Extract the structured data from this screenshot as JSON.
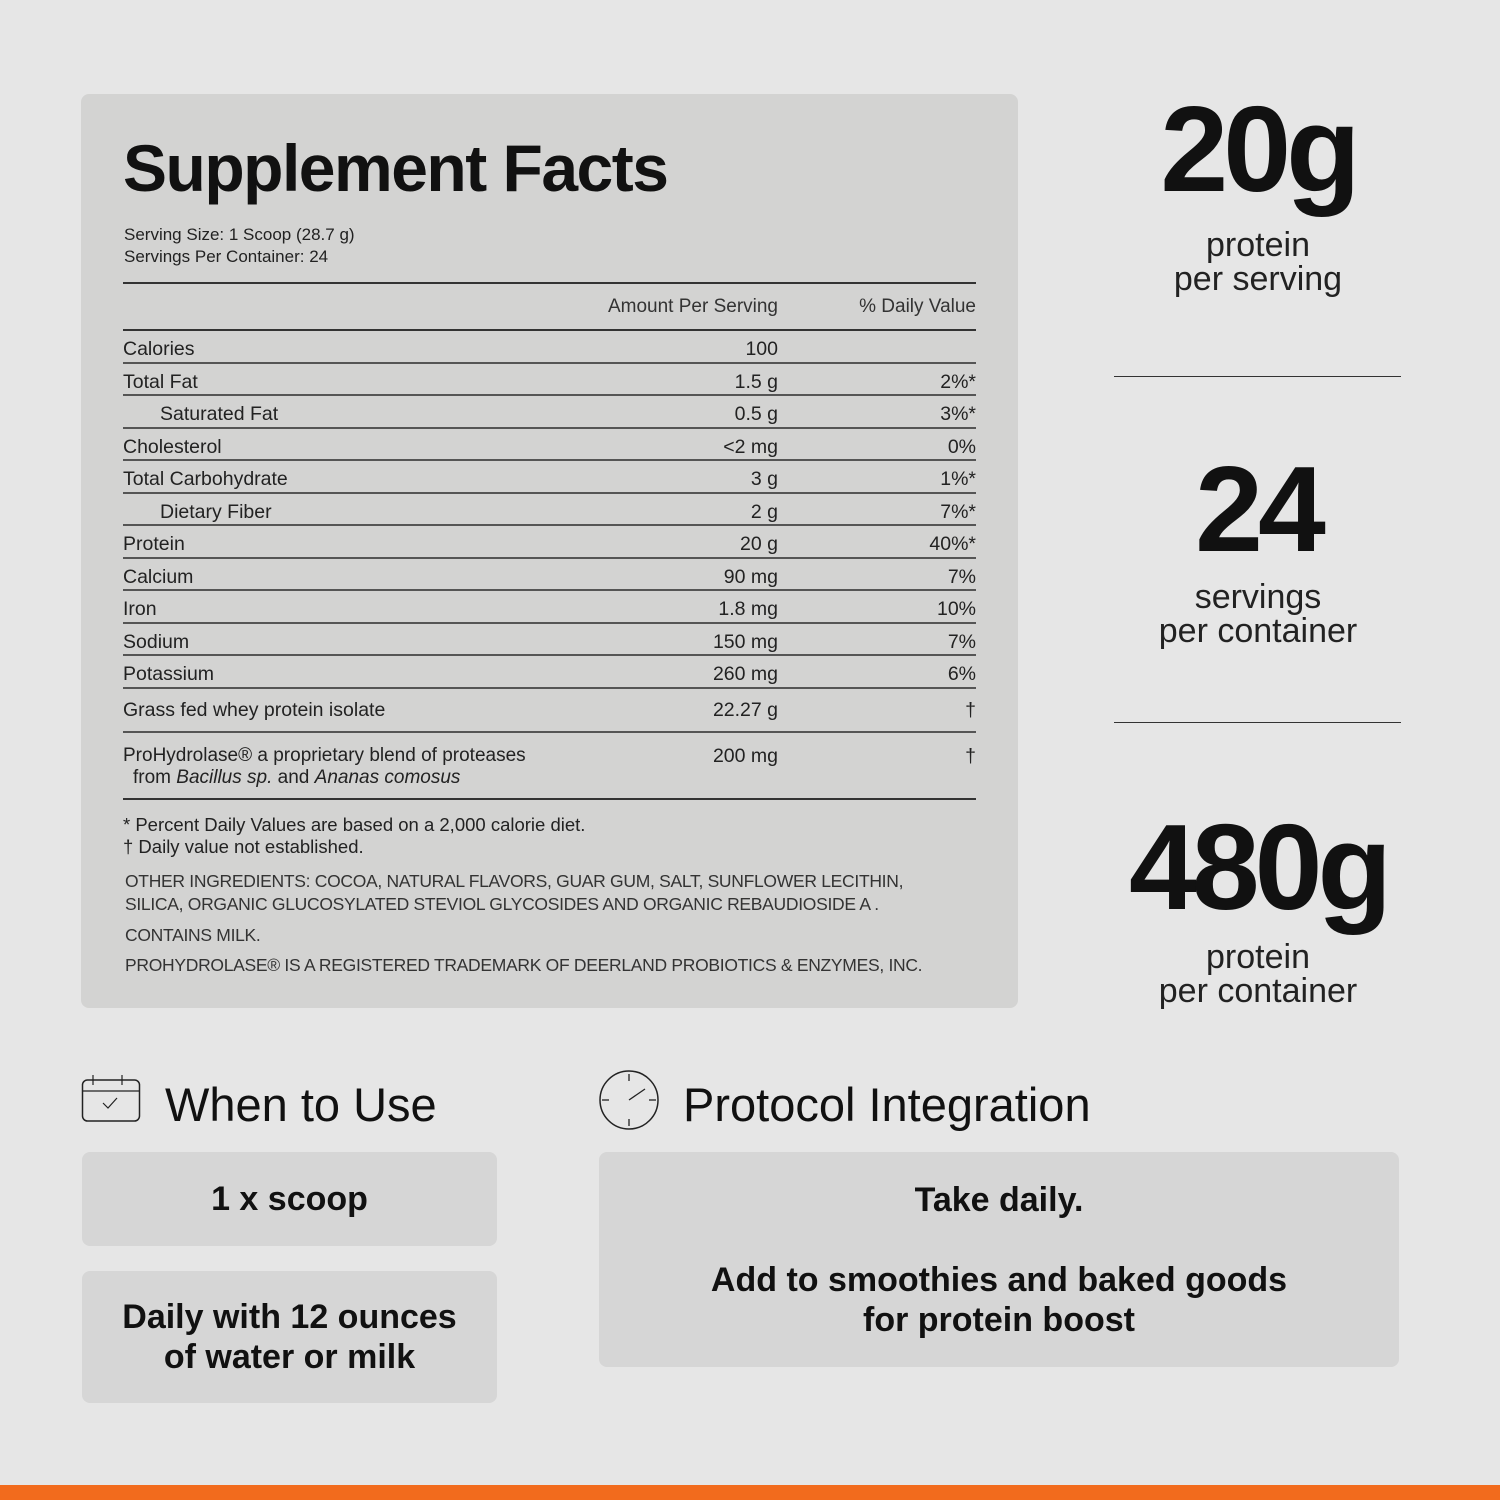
{
  "supplement_facts": {
    "title": "Supplement Facts",
    "serving_size": "Serving Size: 1 Scoop (28.7 g)",
    "servings_per_container": "Servings Per Container: 24",
    "col_amount": "Amount Per Serving",
    "col_dv": "% Daily Value",
    "rows": [
      {
        "name": "Calories",
        "amount": "100",
        "dv": "",
        "indent": false
      },
      {
        "name": "Total Fat",
        "amount": "1.5 g",
        "dv": "2%*",
        "indent": false
      },
      {
        "name": "Saturated Fat",
        "amount": "0.5 g",
        "dv": "3%*",
        "indent": true
      },
      {
        "name": "Cholesterol",
        "amount": "<2 mg",
        "dv": "0%",
        "indent": false
      },
      {
        "name": "Total Carbohydrate",
        "amount": "3 g",
        "dv": "1%*",
        "indent": false
      },
      {
        "name": "Dietary Fiber",
        "amount": "2 g",
        "dv": "7%*",
        "indent": true
      },
      {
        "name": "Protein",
        "amount": "20 g",
        "dv": "40%*",
        "indent": false
      },
      {
        "name": "Calcium",
        "amount": "90 mg",
        "dv": "7%",
        "indent": false
      },
      {
        "name": "Iron",
        "amount": "1.8 mg",
        "dv": "10%",
        "indent": false
      },
      {
        "name": "Sodium",
        "amount": "150 mg",
        "dv": "7%",
        "indent": false
      },
      {
        "name": "Potassium",
        "amount": "260 mg",
        "dv": "6%",
        "indent": false
      }
    ],
    "whey": {
      "name": "Grass fed whey protein isolate",
      "amount": "22.27 g",
      "dv": "†"
    },
    "blend": {
      "name_line1": "ProHydrolase® a proprietary blend of proteases",
      "name_line2_prefix": "from ",
      "name_line2_italic1": "Bacillus sp.",
      "name_line2_mid": " and ",
      "name_line2_italic2": "Ananas comosus",
      "amount": "200 mg",
      "dv": "†"
    },
    "footnote1": "* Percent Daily Values are based on a 2,000 calorie diet.",
    "footnote2": "† Daily value not established.",
    "other_ingredients_1": "OTHER INGREDIENTS: COCOA, NATURAL FLAVORS, GUAR GUM, SALT, SUNFLOWER LECITHIN,",
    "other_ingredients_2": "SILICA, ORGANIC GLUCOSYLATED STEVIOL GLYCOSIDES AND ORGANIC REBAUDIOSIDE A .",
    "contains": "CONTAINS MILK.",
    "trademark": "PROHYDROLASE® IS A REGISTERED TRADEMARK OF DEERLAND PROBIOTICS & ENZYMES, INC."
  },
  "stats": [
    {
      "value": "20g",
      "line1": "protein",
      "line2": "per serving"
    },
    {
      "value": "24",
      "line1": "servings",
      "line2": "per container"
    },
    {
      "value": "480g",
      "line1": "protein",
      "line2": "per container"
    }
  ],
  "when_to_use": {
    "title": "When to Use",
    "icon": "calendar-check-icon",
    "box1": "1 x scoop",
    "box2_line1": "Daily with 12 ounces",
    "box2_line2": "of water or milk"
  },
  "protocol": {
    "title": "Protocol Integration",
    "icon": "clock-icon",
    "line1": "Take daily.",
    "line2": "Add to smoothies and baked goods",
    "line3": "for protein boost"
  },
  "colors": {
    "background": "#e6e6e6",
    "panel": "#d3d3d2",
    "accent": "#f26b1d"
  }
}
